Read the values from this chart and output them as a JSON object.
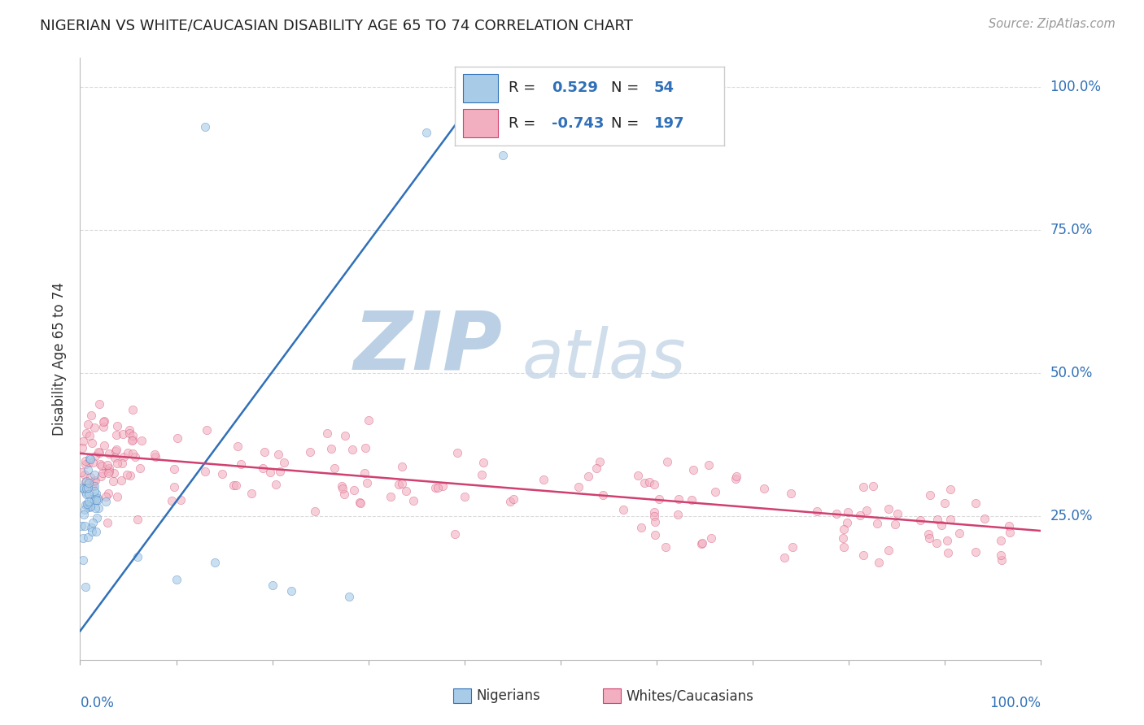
{
  "title": "NIGERIAN VS WHITE/CAUCASIAN DISABILITY AGE 65 TO 74 CORRELATION CHART",
  "source_text": "Source: ZipAtlas.com",
  "ylabel": "Disability Age 65 to 74",
  "legend_nigerian": {
    "R": 0.529,
    "N": 54
  },
  "legend_white": {
    "R": -0.743,
    "N": 197
  },
  "nigerian_color": "#a8cce8",
  "white_color": "#f2afc0",
  "nigerian_line_color": "#3070b8",
  "white_line_color": "#d04070",
  "background_color": "#ffffff",
  "grid_color": "#cccccc",
  "watermark_zip": "ZIP",
  "watermark_atlas": "atlas",
  "watermark_zip_color": "#b0c8e0",
  "watermark_atlas_color": "#c8d8e8",
  "ytick_labels": [
    "25.0%",
    "50.0%",
    "75.0%",
    "100.0%"
  ],
  "ytick_values": [
    0.25,
    0.5,
    0.75,
    1.0
  ],
  "ymin": 0.0,
  "ymax": 1.05,
  "xmin": 0.0,
  "xmax": 1.0,
  "nigerian_seed": 1234,
  "white_seed": 5678
}
